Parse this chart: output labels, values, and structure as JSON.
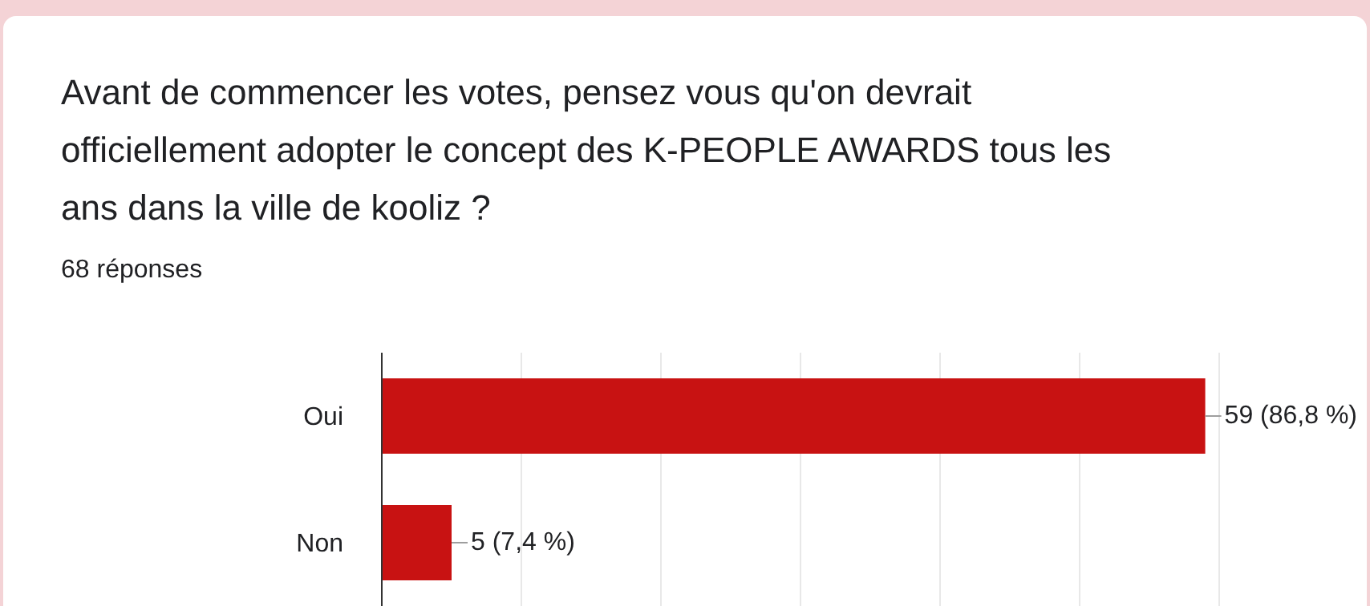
{
  "chart_data": {
    "type": "bar",
    "orientation": "horizontal",
    "title": "Avant de commencer les votes, pensez vous qu'on devrait officiellement adopter le concept des K-PEOPLE AWARDS tous les ans dans la ville de kooliz ?",
    "subtitle": "68 réponses",
    "categories": [
      "Oui",
      "Non"
    ],
    "values": [
      59,
      5
    ],
    "value_labels": [
      "59 (86,8 %)",
      "5 (7,4 %)"
    ],
    "color": "#c81212",
    "xlim": [
      0,
      60
    ],
    "grid": "x",
    "tick_labels": "y"
  }
}
